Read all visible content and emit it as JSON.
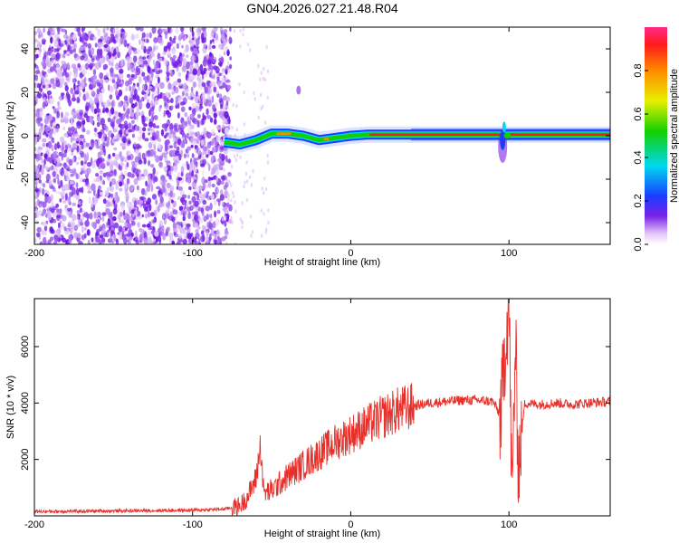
{
  "chart_data": [
    {
      "type": "heatmap",
      "title": "GN04.2026.027.21.48.R04",
      "xlabel": "Height of straight line (km)",
      "ylabel": "Frequency (Hz)",
      "xlim": [
        -200,
        164
      ],
      "ylim": [
        -50,
        50
      ],
      "x_ticks": [
        -200,
        -100,
        0,
        100
      ],
      "y_ticks": [
        -40,
        -20,
        0,
        20,
        40
      ],
      "colorbar": {
        "label": "Normalized spectral amplitude",
        "range": [
          0,
          1
        ],
        "ticks": [
          "0.0",
          "0.2",
          "0.4",
          "0.6",
          "0.8"
        ]
      },
      "features": [
        {
          "x_range": [
            -200,
            -82
          ],
          "description_type": "noise",
          "freq_range": [
            -50,
            50
          ]
        },
        {
          "x_range": [
            -80,
            164
          ],
          "description_type": "carrier",
          "freq_path": [
            [
              -80,
              -3
            ],
            [
              -70,
              -4
            ],
            [
              -60,
              -2
            ],
            [
              -50,
              1
            ],
            [
              -40,
              1
            ],
            [
              -30,
              0
            ],
            [
              -20,
              -2
            ],
            [
              -10,
              -1
            ],
            [
              0,
              0
            ],
            [
              10,
              0.5
            ],
            [
              164,
              0.5
            ]
          ]
        },
        {
          "x": 96,
          "description_type": "spike",
          "freq_range": [
            -15,
            10
          ]
        }
      ],
      "grid": false
    },
    {
      "type": "line",
      "xlabel": "Height of straight line (km)",
      "ylabel": "SNR (10 * v/v)",
      "xlim": [
        -200,
        164
      ],
      "ylim": [
        0,
        7700
      ],
      "x_ticks": [
        -200,
        -100,
        0,
        100
      ],
      "y_ticks": [
        2000,
        4000,
        6000
      ],
      "color": "#e8302b",
      "series": [
        {
          "x": [
            -200,
            -180,
            -160,
            -140,
            -120,
            -100,
            -90,
            -80,
            -70,
            -65,
            -60,
            -57,
            -55,
            -50,
            -40,
            -30,
            -20,
            -10,
            0,
            10,
            20,
            30,
            40,
            50,
            60,
            70,
            80,
            90,
            95,
            98,
            100,
            102,
            104,
            106,
            110,
            120,
            130,
            140,
            150,
            164
          ],
          "y": [
            150,
            160,
            170,
            180,
            190,
            200,
            220,
            240,
            350,
            700,
            1300,
            2500,
            800,
            900,
            1400,
            1800,
            2200,
            2600,
            2900,
            3200,
            3500,
            3750,
            3900,
            4000,
            4050,
            4100,
            4100,
            4050,
            3500,
            6500,
            7600,
            300,
            6200,
            1800,
            4000,
            3950,
            4000,
            3950,
            4000,
            4050
          ]
        }
      ],
      "grid": false
    }
  ]
}
